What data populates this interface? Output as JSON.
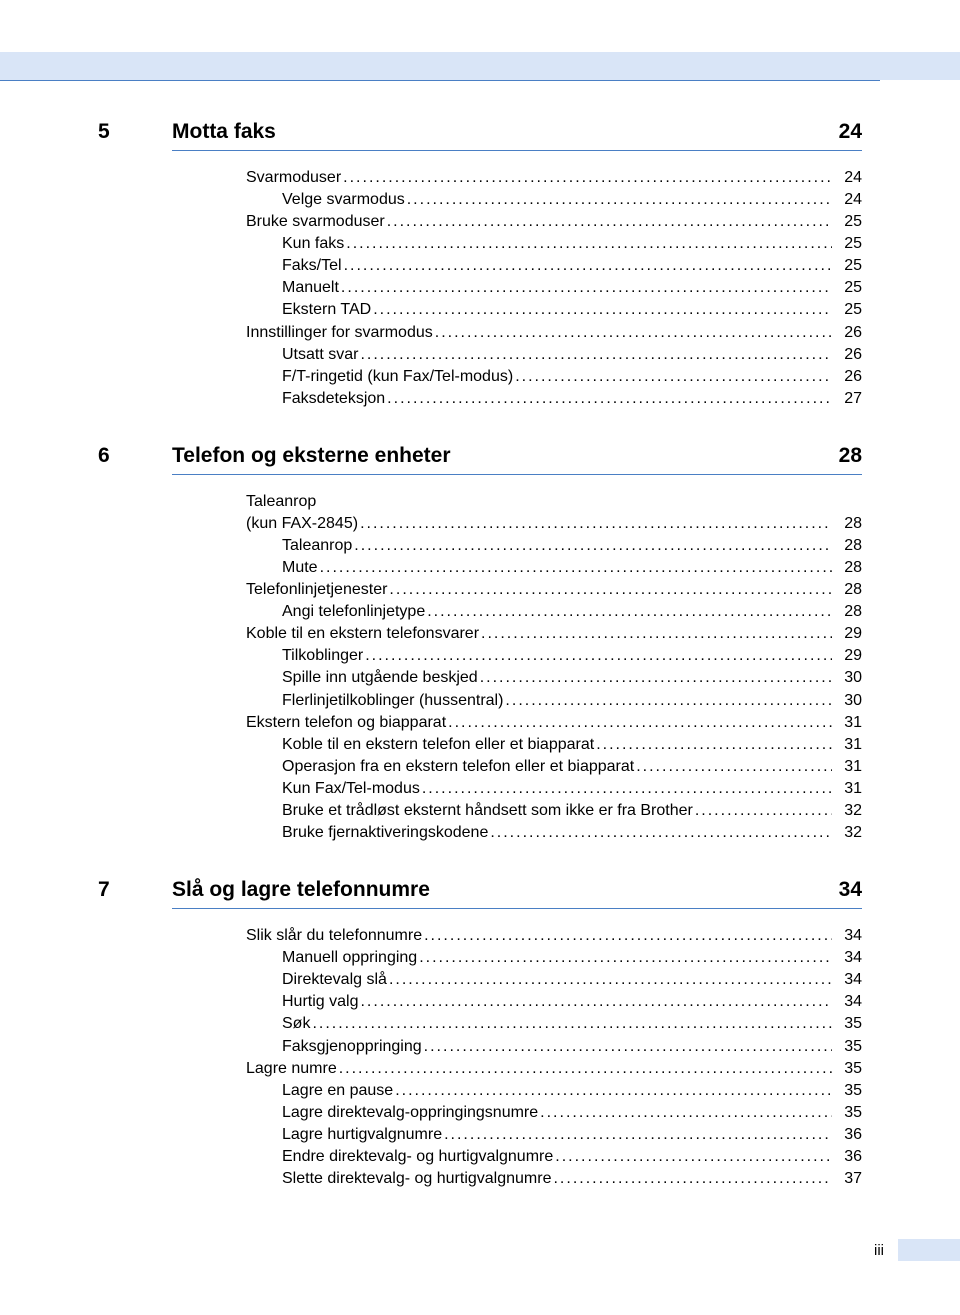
{
  "page_number_label": "iii",
  "colors": {
    "header_bar": "#d9e5f7",
    "rule": "#4a7fc4",
    "text": "#000000",
    "background": "#ffffff"
  },
  "typography": {
    "section_fontsize_pt": 16,
    "entry_fontsize_pt": 12,
    "font_family": "Arial"
  },
  "sections": [
    {
      "num": "5",
      "title": "Motta faks",
      "page": "24",
      "entries": [
        {
          "indent": 0,
          "label": "Svarmoduser",
          "page": "24"
        },
        {
          "indent": 1,
          "label": "Velge svarmodus",
          "page": "24"
        },
        {
          "indent": 0,
          "label": "Bruke svarmoduser",
          "page": "25"
        },
        {
          "indent": 1,
          "label": "Kun faks",
          "page": "25"
        },
        {
          "indent": 1,
          "label": "Faks/Tel",
          "page": "25"
        },
        {
          "indent": 1,
          "label": "Manuelt",
          "page": "25"
        },
        {
          "indent": 1,
          "label": "Ekstern TAD",
          "page": "25"
        },
        {
          "indent": 0,
          "label": "Innstillinger for svarmodus",
          "page": "26"
        },
        {
          "indent": 1,
          "label": "Utsatt svar",
          "page": "26"
        },
        {
          "indent": 1,
          "label": "F/T-ringetid (kun Fax/Tel-modus)",
          "page": "26"
        },
        {
          "indent": 1,
          "label": "Faksdeteksjon",
          "page": "27"
        }
      ]
    },
    {
      "num": "6",
      "title": "Telefon og eksterne enheter",
      "page": "28",
      "entries": [
        {
          "indent": 0,
          "label": "Taleanrop",
          "no_page": true
        },
        {
          "indent": 0,
          "label": " (kun FAX-2845)",
          "page": "28"
        },
        {
          "indent": 1,
          "label": "Taleanrop",
          "page": "28"
        },
        {
          "indent": 1,
          "label": "Mute",
          "page": "28"
        },
        {
          "indent": 0,
          "label": "Telefonlinjetjenester",
          "page": "28"
        },
        {
          "indent": 1,
          "label": "Angi telefonlinjetype",
          "page": "28"
        },
        {
          "indent": 0,
          "label": "Koble til en ekstern telefonsvarer ",
          "page": "29"
        },
        {
          "indent": 1,
          "label": "Tilkoblinger",
          "page": "29"
        },
        {
          "indent": 1,
          "label": "Spille inn utgående beskjed",
          "page": "30"
        },
        {
          "indent": 1,
          "label": "Flerlinjetilkoblinger (hussentral)",
          "page": "30"
        },
        {
          "indent": 0,
          "label": "Ekstern telefon og biapparat",
          "page": "31"
        },
        {
          "indent": 1,
          "label": "Koble til en ekstern telefon eller et biapparat",
          "page": "31"
        },
        {
          "indent": 1,
          "label": "Operasjon fra en ekstern telefon eller et biapparat",
          "page": "31"
        },
        {
          "indent": 1,
          "label": "Kun Fax/Tel-modus",
          "page": "31"
        },
        {
          "indent": 1,
          "label": "Bruke et trådløst eksternt håndsett som ikke er fra Brother",
          "page": "32"
        },
        {
          "indent": 1,
          "label": "Bruke fjernaktiveringskodene",
          "page": "32"
        }
      ]
    },
    {
      "num": "7",
      "title": "Slå og lagre telefonnumre",
      "page": "34",
      "entries": [
        {
          "indent": 0,
          "label": "Slik slår du telefonnumre",
          "page": "34"
        },
        {
          "indent": 1,
          "label": "Manuell oppringing",
          "page": "34"
        },
        {
          "indent": 1,
          "label": "Direktevalg slå",
          "page": "34"
        },
        {
          "indent": 1,
          "label": "Hurtig valg",
          "page": "34"
        },
        {
          "indent": 1,
          "label": "Søk",
          "page": "35"
        },
        {
          "indent": 1,
          "label": "Faksgjenoppringing",
          "page": "35"
        },
        {
          "indent": 0,
          "label": "Lagre numre",
          "page": "35"
        },
        {
          "indent": 1,
          "label": "Lagre en pause",
          "page": "35"
        },
        {
          "indent": 1,
          "label": "Lagre direktevalg-oppringingsnumre",
          "page": "35"
        },
        {
          "indent": 1,
          "label": "Lagre hurtigvalgnumre",
          "page": "36"
        },
        {
          "indent": 1,
          "label": "Endre direktevalg- og hurtigvalgnumre",
          "page": "36"
        },
        {
          "indent": 1,
          "label": "Slette direktevalg- og hurtigvalgnumre",
          "page": "37"
        }
      ]
    }
  ]
}
